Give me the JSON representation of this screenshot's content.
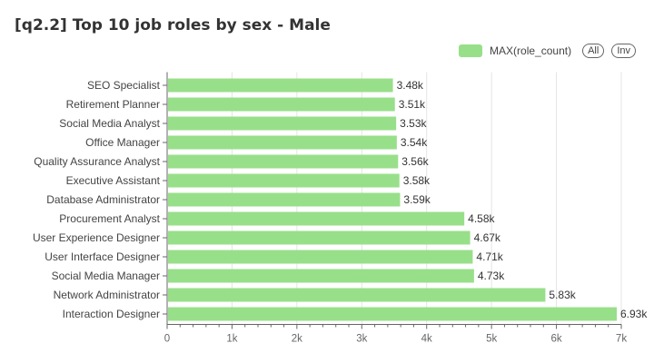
{
  "panel": {
    "title": "[q2.2] Top 10 job roles by sex - Male"
  },
  "legend": {
    "series_label": "MAX(role_count)",
    "all_label": "All",
    "inv_label": "Inv"
  },
  "colors": {
    "bar": "#98df8a",
    "grid": "#e5e5e5",
    "axis": "#666666"
  },
  "chart_data": {
    "type": "bar",
    "orientation": "horizontal",
    "title": "[q2.2] Top 10 job roles by sex - Male",
    "xlabel": "",
    "ylabel": "",
    "xlim": [
      0,
      7000
    ],
    "grid": true,
    "legend": "top-right",
    "x_ticks": [
      0,
      1000,
      2000,
      3000,
      4000,
      5000,
      6000,
      7000
    ],
    "x_tick_labels": [
      "0",
      "1k",
      "2k",
      "3k",
      "4k",
      "5k",
      "6k",
      "7k"
    ],
    "categories": [
      "SEO Specialist",
      "Retirement Planner",
      "Social Media Analyst",
      "Office Manager",
      "Quality Assurance Analyst",
      "Executive Assistant",
      "Database Administrator",
      "Procurement Analyst",
      "User Experience Designer",
      "User Interface Designer",
      "Social Media Manager",
      "Network Administrator",
      "Interaction Designer"
    ],
    "series": [
      {
        "name": "MAX(role_count)",
        "values": [
          3480,
          3510,
          3530,
          3540,
          3560,
          3580,
          3590,
          4580,
          4670,
          4710,
          4730,
          5830,
          6930
        ],
        "labels": [
          "3.48k",
          "3.51k",
          "3.53k",
          "3.54k",
          "3.56k",
          "3.58k",
          "3.59k",
          "4.58k",
          "4.67k",
          "4.71k",
          "4.73k",
          "5.83k",
          "6.93k"
        ]
      }
    ]
  }
}
